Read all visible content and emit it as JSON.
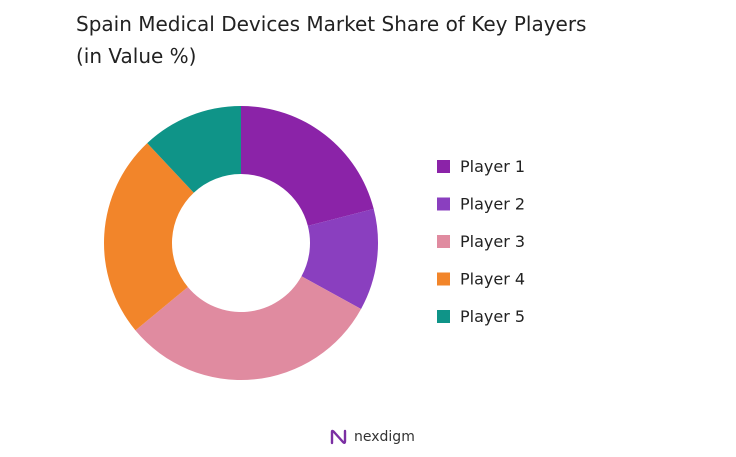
{
  "chart_data": {
    "type": "pie",
    "style": "donut",
    "title_lines": [
      "Spain Medical Devices Market Share of Key Players",
      "(in Value %)"
    ],
    "categories": [
      "Player 1",
      "Player 2",
      "Player 3",
      "Player 4",
      "Player 5"
    ],
    "values": [
      21,
      12,
      31,
      24,
      12
    ],
    "colors": [
      "#8B23A8",
      "#8A3FBF",
      "#E08BA0",
      "#F2852A",
      "#0F9488"
    ],
    "legend_position": "right"
  },
  "brand": {
    "name": "nexdigm",
    "color": "#7B2FA3"
  }
}
